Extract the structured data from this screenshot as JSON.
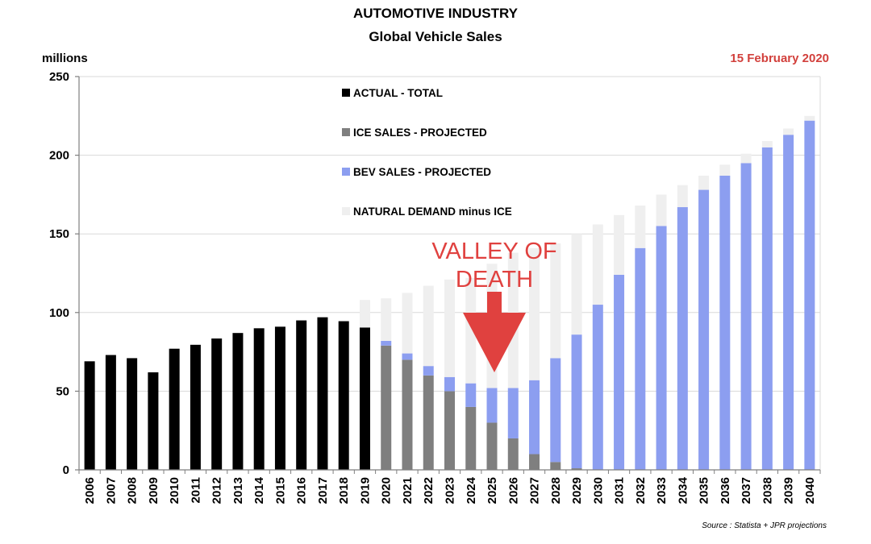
{
  "chart_data": {
    "type": "bar",
    "title": "AUTOMOTIVE INDUSTRY",
    "subtitle": "Global Vehicle Sales",
    "ylabel": "millions",
    "date": "15 February 2020",
    "ylim": [
      0,
      250
    ],
    "yticks": [
      0,
      50,
      100,
      150,
      200,
      250
    ],
    "categories": [
      "2006",
      "2007",
      "2008",
      "2009",
      "2010",
      "2011",
      "2012",
      "2013",
      "2014",
      "2015",
      "2016",
      "2017",
      "2018",
      "2019",
      "2020",
      "2021",
      "2022",
      "2023",
      "2024",
      "2025",
      "2026",
      "2027",
      "2028",
      "2029",
      "2030",
      "2031",
      "2032",
      "2033",
      "2034",
      "2035",
      "2036",
      "2037",
      "2038",
      "2039",
      "2040"
    ],
    "series": [
      {
        "name": "ACTUAL - TOTAL",
        "color": "#000000",
        "values": [
          69,
          73,
          71,
          62,
          77,
          79.5,
          83.5,
          87,
          90,
          91,
          95,
          97,
          94.5,
          90.5,
          null,
          null,
          null,
          null,
          null,
          null,
          null,
          null,
          null,
          null,
          null,
          null,
          null,
          null,
          null,
          null,
          null,
          null,
          null,
          null,
          null
        ]
      },
      {
        "name": "ICE SALES - PROJECTED",
        "color": "#7f7f7f",
        "values": [
          null,
          null,
          null,
          null,
          null,
          null,
          null,
          null,
          null,
          null,
          null,
          null,
          null,
          null,
          79,
          70,
          60,
          50,
          40,
          30,
          20,
          10,
          5,
          1,
          0,
          0,
          0,
          0,
          0,
          0,
          0,
          0,
          0,
          0,
          0
        ]
      },
      {
        "name": "BEV SALES - PROJECTED",
        "color": "#8c9ef0",
        "values": [
          null,
          null,
          null,
          null,
          null,
          null,
          null,
          null,
          null,
          null,
          null,
          null,
          null,
          null,
          3,
          4,
          6,
          9,
          15,
          22,
          32,
          47,
          66,
          85,
          105,
          124,
          141,
          155,
          167,
          178,
          187,
          195,
          205,
          213,
          222
        ]
      },
      {
        "name": "NATURAL DEMAND minus ICE",
        "color": "#efefef",
        "values": [
          null,
          null,
          null,
          null,
          null,
          null,
          null,
          null,
          null,
          null,
          null,
          null,
          null,
          17.5,
          27,
          38.5,
          51,
          62,
          67,
          79,
          86,
          84,
          73,
          64,
          51,
          38,
          27,
          20,
          14,
          9,
          7,
          6,
          4,
          4,
          3
        ]
      }
    ],
    "annotations": [
      {
        "text_lines": [
          "VALLEY OF",
          "DEATH"
        ],
        "color": "#e0413f",
        "points_to": "2025"
      }
    ],
    "source": "Source : Statista + JPR projections",
    "colors": {
      "date": "#d2403c",
      "grid": "#d9d9d9",
      "axis": "#7f7f7f"
    }
  }
}
